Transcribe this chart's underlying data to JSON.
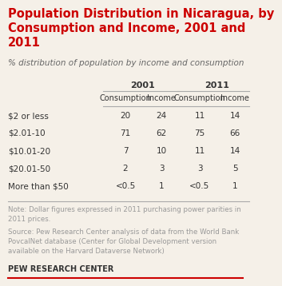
{
  "title_line1": "Population Distribution in Nicaragua, by",
  "title_line2": "Consumption and Income, 2001 and",
  "title_line3": "2011",
  "subtitle": "% distribution of population by income and consumption",
  "row_labels": [
    "$2 or less",
    "$2.01-10",
    "$10.01-20",
    "$20.01-50",
    "More than $50"
  ],
  "data": [
    [
      "20",
      "24",
      "11",
      "14"
    ],
    [
      "71",
      "62",
      "75",
      "66"
    ],
    [
      "7",
      "10",
      "11",
      "14"
    ],
    [
      "2",
      "3",
      "3",
      "5"
    ],
    [
      "<0.5",
      "1",
      "<0.5",
      "1"
    ]
  ],
  "note": "Note: Dollar figures expressed in 2011 purchasing power parities in\n2011 prices.",
  "source": "Source: Pew Research Center analysis of data from the World Bank\nPovcalNet database (Center for Global Development version\navailable on the Harvard Dataverse Network)",
  "branding": "PEW RESEARCH CENTER",
  "title_color": "#cc0000",
  "subtitle_color": "#666666",
  "header_color": "#333333",
  "row_label_color": "#333333",
  "data_color": "#333333",
  "note_color": "#999999",
  "source_color": "#999999",
  "branding_color": "#333333",
  "line_color": "#aaaaaa",
  "bottom_line_color": "#cc0000",
  "bg_color": "#f5f0e8"
}
